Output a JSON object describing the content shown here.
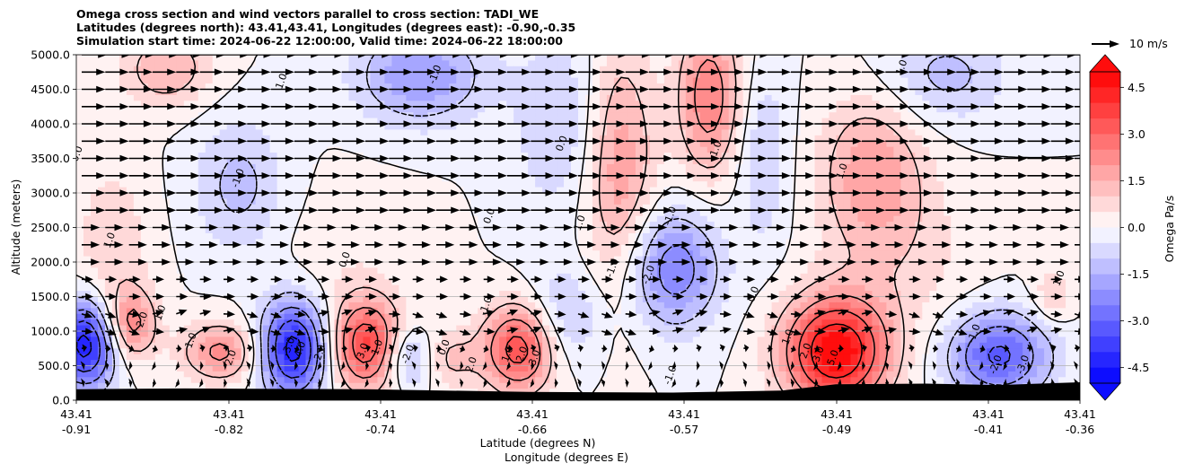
{
  "chart_data": {
    "type": "heatmap",
    "title_lines": [
      "Omega cross section and wind vectors parallel to cross section: TADI_WE",
      "Latitudes (degrees north): 43.41,43.41, Longitudes (degrees east): -0.90,-0.35",
      "Simulation start time: 2024-06-22 12:00:00, Valid time: 2024-06-22 18:00:00"
    ],
    "xlabel_lines": [
      "Latitude (degrees N)",
      "Longitude (degrees E)"
    ],
    "ylabel": "Altitude (meters)",
    "ylim": [
      0,
      5000
    ],
    "yticks": [
      "0.0",
      "500.0",
      "1000.0",
      "1500.0",
      "2000.0",
      "2500.0",
      "3000.0",
      "3500.0",
      "4000.0",
      "4500.0",
      "5000.0"
    ],
    "xticks": [
      {
        "lat": "43.41",
        "lon": "-0.91"
      },
      {
        "lat": "43.41",
        "lon": "-0.82"
      },
      {
        "lat": "43.41",
        "lon": "-0.74"
      },
      {
        "lat": "43.41",
        "lon": "-0.66"
      },
      {
        "lat": "43.41",
        "lon": "-0.57"
      },
      {
        "lat": "43.41",
        "lon": "-0.49"
      },
      {
        "lat": "43.41",
        "lon": "-0.41"
      },
      {
        "lat": "43.41",
        "lon": "-0.36"
      }
    ],
    "grid": "horizontal",
    "colorbar": {
      "label": "Omega Pa/s",
      "range": [
        -5,
        5
      ],
      "ticks": [
        "-4.5",
        "-3.0",
        "-1.5",
        "0.0",
        "1.5",
        "3.0",
        "4.5"
      ],
      "low_color": "#0000ff",
      "mid_color": "#ffffff",
      "high_color": "#ff0000"
    },
    "wind_key_label": "10 m/s",
    "terrain_color": "#000000",
    "omega_centers": [
      {
        "x": -0.905,
        "z": 800,
        "v": -4.5,
        "sx": 0.012,
        "sz": 450
      },
      {
        "x": -0.88,
        "z": 1100,
        "v": 2.2,
        "sx": 0.01,
        "sz": 350
      },
      {
        "x": -0.83,
        "z": 700,
        "v": 2.2,
        "sx": 0.015,
        "sz": 300
      },
      {
        "x": -0.79,
        "z": 750,
        "v": -4.5,
        "sx": 0.013,
        "sz": 500
      },
      {
        "x": -0.75,
        "z": 800,
        "v": 3.5,
        "sx": 0.013,
        "sz": 450
      },
      {
        "x": -0.725,
        "z": 600,
        "v": -1.8,
        "sx": 0.01,
        "sz": 300
      },
      {
        "x": -0.705,
        "z": 600,
        "v": 1.2,
        "sx": 0.012,
        "sz": 300
      },
      {
        "x": -0.665,
        "z": 750,
        "v": 3.5,
        "sx": 0.014,
        "sz": 450
      },
      {
        "x": -0.64,
        "z": 1200,
        "v": -1.2,
        "sx": 0.015,
        "sz": 500
      },
      {
        "x": -0.58,
        "z": 1900,
        "v": -2.5,
        "sx": 0.018,
        "sz": 600
      },
      {
        "x": -0.49,
        "z": 700,
        "v": 5.0,
        "sx": 0.02,
        "sz": 550
      },
      {
        "x": -0.4,
        "z": 650,
        "v": -3.2,
        "sx": 0.02,
        "sz": 450
      },
      {
        "x": -0.37,
        "z": 1500,
        "v": 1.0,
        "sx": 0.008,
        "sz": 300
      },
      {
        "x": -0.47,
        "z": 3300,
        "v": 1.8,
        "sx": 0.02,
        "sz": 800
      },
      {
        "x": -0.61,
        "z": 3400,
        "v": 2.0,
        "sx": 0.014,
        "sz": 1300
      },
      {
        "x": -0.56,
        "z": 4400,
        "v": 2.5,
        "sx": 0.012,
        "sz": 800
      },
      {
        "x": -0.72,
        "z": 4700,
        "v": -2.0,
        "sx": 0.025,
        "sz": 500
      },
      {
        "x": -0.82,
        "z": 3100,
        "v": -1.2,
        "sx": 0.018,
        "sz": 700
      },
      {
        "x": -0.86,
        "z": 4800,
        "v": 1.5,
        "sx": 0.018,
        "sz": 400
      },
      {
        "x": -0.53,
        "z": 3500,
        "v": -1.0,
        "sx": 0.01,
        "sz": 900
      },
      {
        "x": -0.64,
        "z": 4000,
        "v": -1.0,
        "sx": 0.02,
        "sz": 1000
      },
      {
        "x": -0.43,
        "z": 4700,
        "v": -1.2,
        "sx": 0.025,
        "sz": 500
      },
      {
        "x": -0.89,
        "z": 2200,
        "v": 0.9,
        "sx": 0.015,
        "sz": 900
      },
      {
        "x": -0.76,
        "z": 1800,
        "v": 0.4,
        "sx": 0.03,
        "sz": 900
      },
      {
        "x": -0.45,
        "z": 2000,
        "v": 0.6,
        "sx": 0.03,
        "sz": 900
      }
    ],
    "contour_labels": [
      {
        "x": -0.89,
        "z": 2300,
        "text": "1.0"
      },
      {
        "x": -0.872,
        "z": 1150,
        "text": "2.0"
      },
      {
        "x": -0.862,
        "z": 1250,
        "text": "1.0"
      },
      {
        "x": -0.845,
        "z": 850,
        "text": "1.0"
      },
      {
        "x": -0.823,
        "z": 600,
        "text": "2.0"
      },
      {
        "x": -0.819,
        "z": 3200,
        "text": "-1.0"
      },
      {
        "x": -0.791,
        "z": 760,
        "text": "-3.0"
      },
      {
        "x": -0.785,
        "z": 700,
        "text": "-4.0"
      },
      {
        "x": -0.774,
        "z": 650,
        "text": "-2.0"
      },
      {
        "x": -0.75,
        "z": 700,
        "text": "3.0"
      },
      {
        "x": -0.742,
        "z": 750,
        "text": "1.0"
      },
      {
        "x": -0.76,
        "z": 2020,
        "text": "0.0"
      },
      {
        "x": -0.725,
        "z": 650,
        "text": "-2.0"
      },
      {
        "x": -0.705,
        "z": 750,
        "text": "0.0"
      },
      {
        "x": -0.69,
        "z": 500,
        "text": "2.0"
      },
      {
        "x": -0.67,
        "z": 650,
        "text": "1.0"
      },
      {
        "x": -0.662,
        "z": 650,
        "text": "2.0"
      },
      {
        "x": -0.655,
        "z": 600,
        "text": "3.0"
      },
      {
        "x": -0.682,
        "z": 1350,
        "text": "-1.0"
      },
      {
        "x": -0.68,
        "z": 2650,
        "text": "0.0"
      },
      {
        "x": -0.64,
        "z": 3700,
        "text": "0.0"
      },
      {
        "x": -0.63,
        "z": 2550,
        "text": "1.0"
      },
      {
        "x": -0.612,
        "z": 1900,
        "text": "-1.0"
      },
      {
        "x": -0.592,
        "z": 1800,
        "text": "-2.0"
      },
      {
        "x": -0.58,
        "z": 2650,
        "text": "-1.0"
      },
      {
        "x": -0.555,
        "z": 3600,
        "text": "-1.0"
      },
      {
        "x": -0.58,
        "z": 350,
        "text": "-1.0"
      },
      {
        "x": -0.534,
        "z": 1520,
        "text": "0.0"
      },
      {
        "x": -0.515,
        "z": 900,
        "text": "1.0"
      },
      {
        "x": -0.505,
        "z": 700,
        "text": "2.0"
      },
      {
        "x": -0.498,
        "z": 650,
        "text": "3.0"
      },
      {
        "x": -0.49,
        "z": 600,
        "text": "5.0"
      },
      {
        "x": -0.485,
        "z": 3300,
        "text": "1.0"
      },
      {
        "x": -0.4,
        "z": 500,
        "text": "-2.0"
      },
      {
        "x": -0.385,
        "z": 500,
        "text": "-3.0"
      },
      {
        "x": -0.365,
        "z": 1750,
        "text": "1.0"
      },
      {
        "x": -0.412,
        "z": 950,
        "text": "-1.0"
      },
      {
        "x": -0.795,
        "z": 4600,
        "text": "1.0"
      },
      {
        "x": -0.71,
        "z": 4700,
        "text": "-1.0"
      },
      {
        "x": -0.452,
        "z": 4800,
        "text": "1.0"
      },
      {
        "x": -0.908,
        "z": 3550,
        "text": "0.0"
      }
    ]
  }
}
